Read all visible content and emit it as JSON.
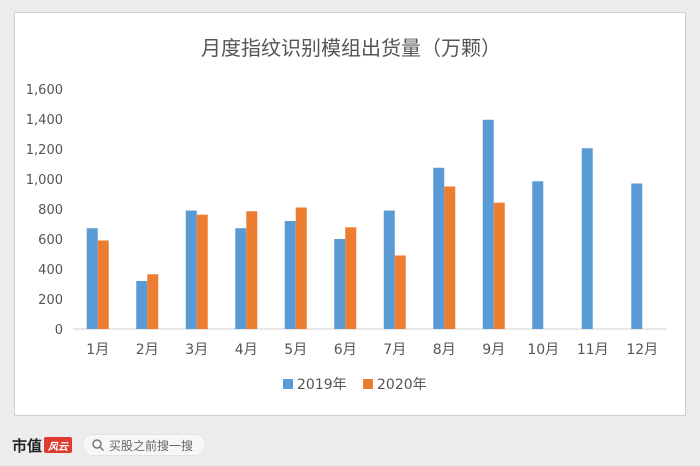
{
  "chart_data": {
    "type": "bar",
    "title": "月度指纹识别模组出货量（万颗）",
    "xlabel": "",
    "ylabel": "",
    "categories": [
      "1月",
      "2月",
      "3月",
      "4月",
      "5月",
      "6月",
      "7月",
      "8月",
      "9月",
      "10月",
      "11月",
      "12月"
    ],
    "series": [
      {
        "name": "2019年",
        "color": "#5b9bd5",
        "values": [
          672,
          320,
          790,
          672,
          720,
          600,
          790,
          1075,
          1395,
          985,
          1205,
          970
        ]
      },
      {
        "name": "2020年",
        "color": "#ed7d31",
        "values": [
          590,
          365,
          762,
          785,
          810,
          678,
          490,
          950,
          842,
          null,
          null,
          null
        ]
      }
    ],
    "ylim": [
      0,
      1600
    ],
    "yticks": [
      "0",
      "200",
      "400",
      "600",
      "800",
      "1,000",
      "1,200",
      "1,400",
      "1,600"
    ],
    "grid": false,
    "legend_position": "bottom"
  },
  "footer": {
    "brand_text": "市值",
    "brand_logo_text": "风云",
    "search_placeholder": "买股之前搜一搜"
  }
}
